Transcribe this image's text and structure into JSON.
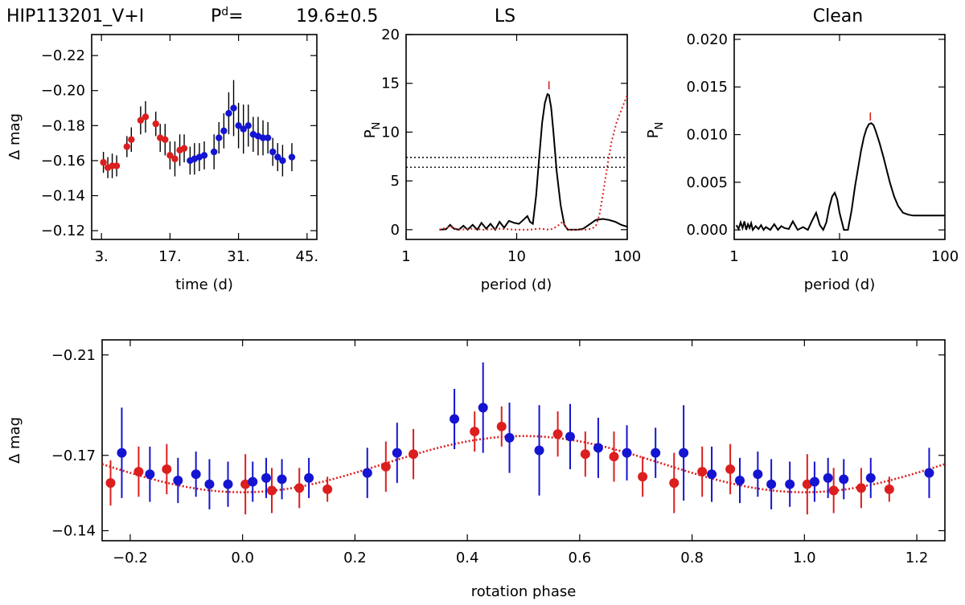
{
  "header": {
    "star": "HIP113201_V+I",
    "period_label": "P",
    "period_sup": "d",
    "period_eq": "=",
    "period_value": "19.6±0.5"
  },
  "colors": {
    "red": "#dc1e1e",
    "blue": "#1414d2",
    "black": "#000000"
  },
  "chart_data": [
    {
      "id": "lightcurve",
      "type": "scatter",
      "title": "",
      "xlabel": "time (d)",
      "ylabel": "Δ mag",
      "xlim": [
        1,
        47
      ],
      "ylim": [
        -0.115,
        -0.232
      ],
      "xticks": [
        3,
        17,
        31,
        45
      ],
      "xtick_labels": [
        "3.",
        "17.",
        "31.",
        "45."
      ],
      "yticks": [
        -0.12,
        -0.14,
        -0.16,
        -0.18,
        -0.2,
        -0.22
      ],
      "ytick_labels": [
        "−0.12",
        "−0.14",
        "−0.16",
        "−0.18",
        "−0.20",
        "−0.22"
      ],
      "series": [
        {
          "name": "red",
          "color": "#dc1e1e",
          "points": [
            {
              "x": 3.4,
              "y": -0.159,
              "err": 0.006
            },
            {
              "x": 4.3,
              "y": -0.156,
              "err": 0.006
            },
            {
              "x": 5.2,
              "y": -0.157,
              "err": 0.007
            },
            {
              "x": 6.1,
              "y": -0.157,
              "err": 0.006
            },
            {
              "x": 8.2,
              "y": -0.168,
              "err": 0.006
            },
            {
              "x": 9.1,
              "y": -0.172,
              "err": 0.007
            },
            {
              "x": 11.0,
              "y": -0.183,
              "err": 0.008
            },
            {
              "x": 12.0,
              "y": -0.185,
              "err": 0.009
            },
            {
              "x": 14.1,
              "y": -0.181,
              "err": 0.007
            },
            {
              "x": 15.0,
              "y": -0.173,
              "err": 0.008
            },
            {
              "x": 16.0,
              "y": -0.172,
              "err": 0.009
            },
            {
              "x": 17.0,
              "y": -0.163,
              "err": 0.008
            },
            {
              "x": 18.0,
              "y": -0.161,
              "err": 0.01
            },
            {
              "x": 19.0,
              "y": -0.166,
              "err": 0.009
            },
            {
              "x": 19.9,
              "y": -0.167,
              "err": 0.008
            }
          ]
        },
        {
          "name": "blue",
          "color": "#1414d2",
          "points": [
            {
              "x": 21.1,
              "y": -0.16,
              "err": 0.008
            },
            {
              "x": 22.0,
              "y": -0.161,
              "err": 0.009
            },
            {
              "x": 23.0,
              "y": -0.162,
              "err": 0.008
            },
            {
              "x": 24.0,
              "y": -0.163,
              "err": 0.008
            },
            {
              "x": 26.0,
              "y": -0.165,
              "err": 0.01
            },
            {
              "x": 27.0,
              "y": -0.173,
              "err": 0.009
            },
            {
              "x": 28.0,
              "y": -0.177,
              "err": 0.01
            },
            {
              "x": 29.0,
              "y": -0.187,
              "err": 0.012
            },
            {
              "x": 30.0,
              "y": -0.19,
              "err": 0.016
            },
            {
              "x": 31.0,
              "y": -0.18,
              "err": 0.013
            },
            {
              "x": 32.0,
              "y": -0.178,
              "err": 0.014
            },
            {
              "x": 33.0,
              "y": -0.18,
              "err": 0.012
            },
            {
              "x": 34.0,
              "y": -0.175,
              "err": 0.01
            },
            {
              "x": 35.0,
              "y": -0.174,
              "err": 0.011
            },
            {
              "x": 36.0,
              "y": -0.173,
              "err": 0.01
            },
            {
              "x": 37.0,
              "y": -0.173,
              "err": 0.009
            },
            {
              "x": 38.0,
              "y": -0.165,
              "err": 0.008
            },
            {
              "x": 39.0,
              "y": -0.162,
              "err": 0.008
            },
            {
              "x": 40.0,
              "y": -0.16,
              "err": 0.009
            },
            {
              "x": 41.9,
              "y": -0.162,
              "err": 0.008
            }
          ]
        }
      ]
    },
    {
      "id": "ls",
      "type": "line",
      "title": "LS",
      "xlabel": "period (d)",
      "ylabel": "P",
      "ylabel_sub": "N",
      "xscale": "log",
      "xlim": [
        1,
        100
      ],
      "ylim": [
        -1,
        20
      ],
      "xticks": [
        1,
        10,
        100
      ],
      "xtick_labels": [
        "1",
        "10",
        "100"
      ],
      "yticks": [
        0,
        5,
        10,
        15,
        20
      ],
      "ytick_labels": [
        "0",
        "5",
        "10",
        "15",
        "20"
      ],
      "thresholds": [
        6.4,
        7.4
      ],
      "peak_marker": {
        "x": 19.6,
        "y": 14.8
      },
      "series": [
        {
          "name": "power",
          "color": "#000000",
          "style": "solid",
          "x": [
            2.0,
            2.3,
            2.5,
            2.7,
            3.0,
            3.3,
            3.6,
            4.0,
            4.4,
            4.8,
            5.3,
            5.8,
            6.4,
            7.0,
            7.7,
            8.5,
            9.5,
            10.5,
            11.5,
            12.5,
            13.2,
            14.0,
            15.0,
            16.0,
            17.0,
            18.0,
            19.0,
            19.6,
            20.5,
            21.5,
            23.0,
            25.0,
            27.0,
            29.0,
            32.0,
            36.0,
            40.0,
            45.0,
            52.0,
            60.0,
            68.0,
            78.0,
            88.0,
            100.0
          ],
          "y": [
            0.0,
            0.05,
            0.5,
            0.1,
            0.0,
            0.4,
            0.0,
            0.5,
            0.0,
            0.7,
            0.1,
            0.6,
            0.0,
            0.8,
            0.2,
            0.9,
            0.7,
            0.6,
            1.0,
            1.4,
            0.8,
            0.6,
            3.5,
            7.5,
            11.0,
            13.0,
            13.9,
            13.8,
            12.5,
            10.0,
            6.0,
            2.5,
            0.5,
            0.0,
            0.0,
            0.0,
            0.1,
            0.5,
            1.0,
            1.1,
            1.0,
            0.8,
            0.5,
            0.3
          ]
        },
        {
          "name": "window",
          "color": "#dc1e1e",
          "style": "dotted",
          "x": [
            2.0,
            2.5,
            3.0,
            4.0,
            5.0,
            7.0,
            10.0,
            13.0,
            16.0,
            20.0,
            23.0,
            26.0,
            28.0,
            30.0,
            33.0,
            37.0,
            42.0,
            48.0,
            52.0,
            56.0,
            60.0,
            66.0,
            72.0,
            80.0,
            90.0,
            100.0
          ],
          "y": [
            0.0,
            0.3,
            0.0,
            0.1,
            0.0,
            0.1,
            0.0,
            0.0,
            0.1,
            0.0,
            0.3,
            0.8,
            0.2,
            0.0,
            0.0,
            0.0,
            0.0,
            0.1,
            0.4,
            1.5,
            3.5,
            6.5,
            9.0,
            11.0,
            12.5,
            13.8
          ]
        }
      ]
    },
    {
      "id": "clean",
      "type": "line",
      "title": "Clean",
      "xlabel": "period (d)",
      "ylabel": "P",
      "ylabel_sub": "N",
      "xscale": "log",
      "xlim": [
        1,
        100
      ],
      "ylim": [
        -0.001,
        0.0205
      ],
      "xticks": [
        1,
        10,
        100
      ],
      "xtick_labels": [
        "1",
        "10",
        "100"
      ],
      "yticks": [
        0.0,
        0.005,
        0.01,
        0.015,
        0.02
      ],
      "ytick_labels": [
        "0.000",
        "0.005",
        "0.010",
        "0.015",
        "0.020"
      ],
      "peak_marker": {
        "x": 19.6,
        "y": 0.0119
      },
      "series": [
        {
          "name": "clean-power",
          "color": "#000000",
          "style": "solid",
          "x": [
            1.05,
            1.1,
            1.15,
            1.2,
            1.25,
            1.3,
            1.35,
            1.4,
            1.45,
            1.5,
            1.6,
            1.7,
            1.8,
            1.9,
            2.0,
            2.2,
            2.4,
            2.6,
            2.8,
            3.0,
            3.3,
            3.6,
            4.0,
            4.5,
            5.0,
            5.5,
            6.0,
            6.5,
            7.0,
            7.5,
            8.0,
            8.5,
            9.0,
            9.5,
            10.0,
            11.0,
            12.0,
            13.0,
            14.0,
            15.0,
            16.0,
            17.0,
            18.0,
            19.0,
            20.0,
            21.0,
            22.0,
            24.0,
            26.0,
            28.0,
            30.0,
            33.0,
            36.0,
            40.0,
            45.0,
            50.0,
            60.0,
            70.0,
            80.0,
            90.0,
            100.0
          ],
          "y": [
            0.0005,
            0.0001,
            0.0008,
            0.0002,
            0.0009,
            0.0,
            0.0006,
            0.0002,
            0.0007,
            0.0,
            0.0004,
            0.0001,
            0.0005,
            0.0,
            0.0003,
            0.0,
            0.0006,
            0.0,
            0.0004,
            0.0002,
            0.0001,
            0.0009,
            0.0,
            0.0003,
            0.0,
            0.001,
            0.0018,
            0.0005,
            0.0,
            0.0008,
            0.0024,
            0.0035,
            0.0039,
            0.0032,
            0.0018,
            0.0,
            0.0,
            0.002,
            0.0045,
            0.0065,
            0.0083,
            0.0097,
            0.0106,
            0.0111,
            0.0112,
            0.011,
            0.0104,
            0.0091,
            0.0077,
            0.0063,
            0.005,
            0.0035,
            0.0025,
            0.0018,
            0.0016,
            0.0015,
            0.0015,
            0.0015,
            0.0015,
            0.0015,
            0.0015
          ]
        }
      ]
    },
    {
      "id": "phase",
      "type": "scatter",
      "title": "",
      "xlabel": "rotation phase",
      "ylabel": "Δ mag",
      "xlim": [
        -0.25,
        1.25
      ],
      "ylim": [
        -0.136,
        -0.216
      ],
      "xticks": [
        -0.2,
        0.0,
        0.2,
        0.4,
        0.6,
        0.8,
        1.0,
        1.2
      ],
      "xtick_labels": [
        "−0.2",
        "0.0",
        "0.2",
        "0.4",
        "0.6",
        "0.8",
        "1.0",
        "1.2"
      ],
      "yticks": [
        -0.14,
        -0.17,
        -0.21
      ],
      "ytick_labels": [
        "−0.14",
        "−0.17",
        "−0.21"
      ],
      "fit": {
        "mean": -0.1665,
        "amplitude": 0.0112,
        "peak_phase": 0.5,
        "color": "#dc1e1e",
        "style": "dotted"
      },
      "series": [
        {
          "name": "red",
          "color": "#dc1e1e",
          "points": [
            {
              "x": -0.235,
              "y": -0.159,
              "err": 0.009
            },
            {
              "x": -0.185,
              "y": -0.1635,
              "err": 0.01
            },
            {
              "x": -0.135,
              "y": -0.1645,
              "err": 0.01
            },
            {
              "x": 0.005,
              "y": -0.1585,
              "err": 0.012
            },
            {
              "x": 0.052,
              "y": -0.156,
              "err": 0.009
            },
            {
              "x": 0.101,
              "y": -0.157,
              "err": 0.008
            },
            {
              "x": 0.151,
              "y": -0.1565,
              "err": 0.005
            },
            {
              "x": 0.255,
              "y": -0.1655,
              "err": 0.01
            },
            {
              "x": 0.304,
              "y": -0.1705,
              "err": 0.01
            },
            {
              "x": 0.413,
              "y": -0.1795,
              "err": 0.008
            },
            {
              "x": 0.461,
              "y": -0.1815,
              "err": 0.008
            },
            {
              "x": 0.561,
              "y": -0.1785,
              "err": 0.009
            },
            {
              "x": 0.61,
              "y": -0.1705,
              "err": 0.009
            },
            {
              "x": 0.661,
              "y": -0.1695,
              "err": 0.01
            },
            {
              "x": 0.712,
              "y": -0.1615,
              "err": 0.008
            },
            {
              "x": 0.768,
              "y": -0.159,
              "err": 0.012
            },
            {
              "x": 0.818,
              "y": -0.1635,
              "err": 0.01
            },
            {
              "x": 0.868,
              "y": -0.1645,
              "err": 0.01
            },
            {
              "x": 1.005,
              "y": -0.1585,
              "err": 0.012
            },
            {
              "x": 1.052,
              "y": -0.156,
              "err": 0.009
            },
            {
              "x": 1.101,
              "y": -0.157,
              "err": 0.008
            },
            {
              "x": 1.151,
              "y": -0.1565,
              "err": 0.005
            }
          ]
        },
        {
          "name": "blue",
          "color": "#1414d2",
          "points": [
            {
              "x": -0.215,
              "y": -0.171,
              "err": 0.018
            },
            {
              "x": -0.165,
              "y": -0.1625,
              "err": 0.011
            },
            {
              "x": -0.115,
              "y": -0.16,
              "err": 0.009
            },
            {
              "x": -0.083,
              "y": -0.1625,
              "err": 0.009
            },
            {
              "x": -0.059,
              "y": -0.1585,
              "err": 0.01
            },
            {
              "x": -0.026,
              "y": -0.1585,
              "err": 0.009
            },
            {
              "x": 0.018,
              "y": -0.1595,
              "err": 0.008
            },
            {
              "x": 0.042,
              "y": -0.161,
              "err": 0.008
            },
            {
              "x": 0.07,
              "y": -0.1605,
              "err": 0.008
            },
            {
              "x": 0.118,
              "y": -0.161,
              "err": 0.008
            },
            {
              "x": 0.222,
              "y": -0.163,
              "err": 0.01
            },
            {
              "x": 0.275,
              "y": -0.171,
              "err": 0.012
            },
            {
              "x": 0.377,
              "y": -0.1845,
              "err": 0.012
            },
            {
              "x": 0.428,
              "y": -0.189,
              "err": 0.018
            },
            {
              "x": 0.475,
              "y": -0.177,
              "err": 0.014
            },
            {
              "x": 0.528,
              "y": -0.172,
              "err": 0.018
            },
            {
              "x": 0.583,
              "y": -0.1775,
              "err": 0.013
            },
            {
              "x": 0.633,
              "y": -0.173,
              "err": 0.012
            },
            {
              "x": 0.684,
              "y": -0.171,
              "err": 0.011
            },
            {
              "x": 0.735,
              "y": -0.171,
              "err": 0.01
            },
            {
              "x": 0.785,
              "y": -0.171,
              "err": 0.019
            },
            {
              "x": 0.835,
              "y": -0.1625,
              "err": 0.011
            },
            {
              "x": 0.885,
              "y": -0.16,
              "err": 0.009
            },
            {
              "x": 0.917,
              "y": -0.1625,
              "err": 0.009
            },
            {
              "x": 0.941,
              "y": -0.1585,
              "err": 0.01
            },
            {
              "x": 0.974,
              "y": -0.1585,
              "err": 0.009
            },
            {
              "x": 1.018,
              "y": -0.1595,
              "err": 0.008
            },
            {
              "x": 1.042,
              "y": -0.161,
              "err": 0.008
            },
            {
              "x": 1.07,
              "y": -0.1605,
              "err": 0.008
            },
            {
              "x": 1.118,
              "y": -0.161,
              "err": 0.008
            },
            {
              "x": 1.222,
              "y": -0.163,
              "err": 0.01
            }
          ]
        }
      ]
    }
  ]
}
